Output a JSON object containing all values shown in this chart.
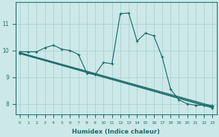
{
  "xlabel": "Humidex (Indice chaleur)",
  "bg_color": "#cce8e8",
  "line_color": "#1a6b6b",
  "grid_color": "#aad0d0",
  "xlim": [
    -0.5,
    23.5
  ],
  "ylim": [
    7.6,
    11.8
  ],
  "xticks": [
    0,
    1,
    2,
    3,
    4,
    5,
    6,
    7,
    8,
    9,
    10,
    11,
    12,
    13,
    14,
    15,
    16,
    17,
    18,
    19,
    20,
    21,
    22,
    23
  ],
  "yticks": [
    8,
    9,
    10,
    11
  ],
  "xlabel_fontsize": 6.5,
  "tick_fontsize": 5.5,
  "lines": [
    {
      "x": [
        0,
        1,
        2,
        3,
        4,
        5,
        6,
        7,
        8,
        9,
        10,
        11,
        12,
        13,
        14,
        15,
        16,
        17,
        18,
        19,
        20,
        21,
        22,
        23
      ],
      "y": [
        9.95,
        9.95,
        9.95,
        10.1,
        10.2,
        10.05,
        10.0,
        9.85,
        9.15,
        9.1,
        9.55,
        9.5,
        11.38,
        11.4,
        10.35,
        10.65,
        10.55,
        9.75,
        8.55,
        8.15,
        8.0,
        7.95,
        7.95,
        7.93
      ]
    },
    {
      "x": [
        0,
        23
      ],
      "y": [
        9.92,
        7.92
      ]
    },
    {
      "x": [
        0,
        23
      ],
      "y": [
        9.9,
        7.88
      ]
    },
    {
      "x": [
        0,
        23
      ],
      "y": [
        9.88,
        7.85
      ]
    }
  ]
}
